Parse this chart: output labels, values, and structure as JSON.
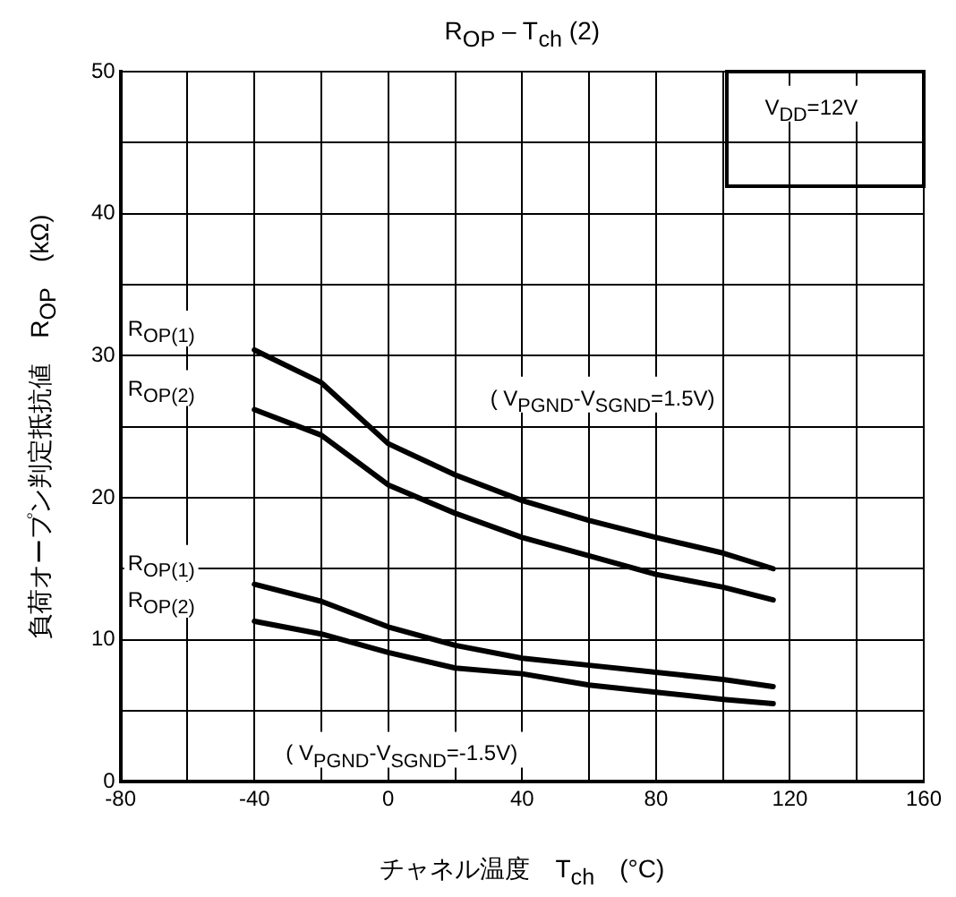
{
  "chart_data": {
    "type": "line",
    "title": "R$_{OP}$ – T$_{ch}$ (2)",
    "xlabel": "チャネル温度　T$_{ch}$　(°C)",
    "ylabel": "負荷オープン判定抵抗値　R$_{OP}$　(kΩ)",
    "x": [
      -40,
      -20,
      0,
      20,
      40,
      60,
      80,
      100,
      115
    ],
    "series": [
      {
        "name": "R$_{OP(1)}$",
        "color": "#000000",
        "values": [
          30.4,
          28.1,
          23.8,
          21.6,
          19.8,
          18.4,
          17.2,
          16.1,
          15.0
        ]
      },
      {
        "name": "R$_{OP(2)}$",
        "color": "#000000",
        "values": [
          26.2,
          24.4,
          20.9,
          18.9,
          17.2,
          15.9,
          14.6,
          13.7,
          12.8
        ]
      },
      {
        "name": "R$_{OP(1)}$",
        "color": "#000000",
        "values": [
          13.9,
          12.7,
          10.9,
          9.6,
          8.7,
          8.2,
          7.7,
          7.2,
          6.7
        ]
      },
      {
        "name": "R$_{OP(2)}$",
        "color": "#000000",
        "values": [
          11.3,
          10.4,
          9.1,
          8.0,
          7.6,
          6.8,
          6.3,
          5.8,
          5.5
        ]
      }
    ],
    "xlim": [
      -80,
      160
    ],
    "xticks": [
      -80,
      {
        "value": -60,
        "label": null
      },
      -40,
      {
        "value": -20,
        "label": null
      },
      0,
      {
        "value": 20,
        "label": null
      },
      40,
      {
        "value": 60,
        "label": null
      },
      80,
      {
        "value": 100,
        "label": null
      },
      120,
      {
        "value": 140,
        "label": null
      },
      160
    ],
    "ylim": [
      0,
      50
    ],
    "yticks": [
      0,
      {
        "value": 5,
        "label": null
      },
      10,
      {
        "value": 15,
        "label": null
      },
      20,
      {
        "value": 25,
        "label": null
      },
      30,
      {
        "value": 35,
        "label": null
      },
      40,
      {
        "value": 45,
        "label": null
      },
      50
    ],
    "grid": true,
    "legend": false,
    "marker": "none",
    "line_style": "solid",
    "annotations": [
      "V$_{DD}$=12V",
      "( V$_{PGND}$-V$_{SGND}$=1.5V)",
      "( V$_{PGND}$-V$_{SGND}$=-1.5V)"
    ]
  }
}
